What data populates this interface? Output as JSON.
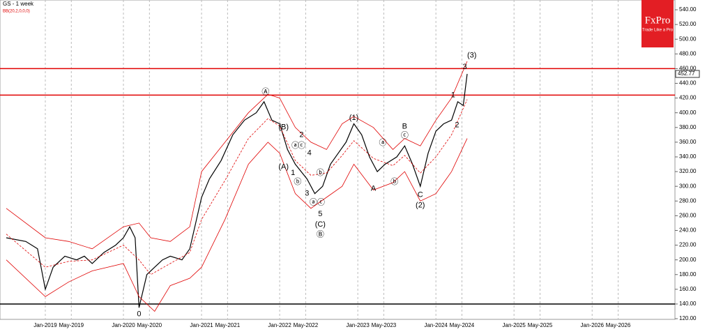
{
  "chart_data": {
    "type": "line",
    "title": "GS - 1 week",
    "subtitle": "BB(20,2,0,0,0)",
    "logo": {
      "name": "FxPro",
      "tagline": "Trade Like a Pro"
    },
    "xlim": [
      2018.42,
      2027.06
    ],
    "ylim": [
      119.1,
      553.3
    ],
    "xticks": [
      {
        "value": 2019.0,
        "label": "Jan-2019"
      },
      {
        "value": 2019.333,
        "label": "May-2019"
      },
      {
        "value": 2020.0,
        "label": "Jan-2020"
      },
      {
        "value": 2020.333,
        "label": "May-2020"
      },
      {
        "value": 2021.0,
        "label": "Jan-2021"
      },
      {
        "value": 2021.333,
        "label": "May-2021"
      },
      {
        "value": 2022.0,
        "label": "Jan-2022"
      },
      {
        "value": 2022.333,
        "label": "May-2022"
      },
      {
        "value": 2023.0,
        "label": "Jan-2023"
      },
      {
        "value": 2023.333,
        "label": "May-2023"
      },
      {
        "value": 2024.0,
        "label": "Jan-2024"
      },
      {
        "value": 2024.333,
        "label": "May-2024"
      },
      {
        "value": 2025.0,
        "label": "Jan-2025"
      },
      {
        "value": 2025.333,
        "label": "May-2025"
      },
      {
        "value": 2026.0,
        "label": "Jan-2026"
      },
      {
        "value": 2026.333,
        "label": "May-2026"
      }
    ],
    "yticks": [
      {
        "value": 120,
        "label": "120.00"
      },
      {
        "value": 140,
        "label": "140.00"
      },
      {
        "value": 160,
        "label": "160.00"
      },
      {
        "value": 180,
        "label": "180.00"
      },
      {
        "value": 200,
        "label": "200.00"
      },
      {
        "value": 220,
        "label": "220.00"
      },
      {
        "value": 240,
        "label": "240.00"
      },
      {
        "value": 260,
        "label": "260.00"
      },
      {
        "value": 280,
        "label": "280.00"
      },
      {
        "value": 300,
        "label": "300.00"
      },
      {
        "value": 320,
        "label": "320.00"
      },
      {
        "value": 340,
        "label": "340.00"
      },
      {
        "value": 360,
        "label": "360.00"
      },
      {
        "value": 380,
        "label": "380.00"
      },
      {
        "value": 400,
        "label": "400.00"
      },
      {
        "value": 420,
        "label": "420.00"
      },
      {
        "value": 440,
        "label": "440.00"
      },
      {
        "value": 460,
        "label": "460.00"
      },
      {
        "value": 480,
        "label": "480.00"
      },
      {
        "value": 500,
        "label": "500.00"
      },
      {
        "value": 520,
        "label": "520.00"
      },
      {
        "value": 540,
        "label": "540.00"
      }
    ],
    "grid": true,
    "series": [
      {
        "name": "GS",
        "color": "#000000",
        "x": [
          2018.5,
          2018.75,
          2018.9,
          2019.0,
          2019.1,
          2019.25,
          2019.4,
          2019.5,
          2019.6,
          2019.75,
          2019.9,
          2020.0,
          2020.08,
          2020.15,
          2020.2,
          2020.3,
          2020.4,
          2020.5,
          2020.6,
          2020.75,
          2020.85,
          2021.0,
          2021.1,
          2021.25,
          2021.4,
          2021.55,
          2021.7,
          2021.8,
          2021.9,
          2022.0,
          2022.1,
          2022.2,
          2022.35,
          2022.45,
          2022.55,
          2022.65,
          2022.75,
          2022.85,
          2022.95,
          2023.05,
          2023.15,
          2023.25,
          2023.35,
          2023.5,
          2023.6,
          2023.7,
          2023.8,
          2023.9,
          2024.0,
          2024.1,
          2024.2,
          2024.28,
          2024.35,
          2024.4
        ],
        "values": [
          230,
          225,
          215,
          160,
          190,
          205,
          200,
          205,
          195,
          210,
          220,
          230,
          245,
          230,
          135,
          180,
          190,
          200,
          205,
          200,
          215,
          285,
          310,
          335,
          370,
          390,
          400,
          415,
          390,
          385,
          350,
          330,
          310,
          290,
          300,
          330,
          345,
          360,
          385,
          370,
          340,
          320,
          330,
          340,
          355,
          330,
          300,
          345,
          375,
          385,
          390,
          415,
          410,
          452.77
        ]
      },
      {
        "name": "BB upper",
        "color": "#e00000",
        "x": [
          2018.5,
          2019.0,
          2019.3,
          2019.6,
          2020.0,
          2020.2,
          2020.35,
          2020.6,
          2020.85,
          2021.0,
          2021.3,
          2021.6,
          2021.85,
          2022.0,
          2022.2,
          2022.4,
          2022.6,
          2022.8,
          2022.95,
          2023.2,
          2023.45,
          2023.6,
          2023.8,
          2024.0,
          2024.2,
          2024.4
        ],
        "values": [
          270,
          230,
          225,
          215,
          245,
          250,
          230,
          225,
          245,
          320,
          360,
          400,
          425,
          420,
          380,
          360,
          350,
          385,
          395,
          380,
          350,
          365,
          355,
          390,
          420,
          470
        ]
      },
      {
        "name": "BB middle",
        "color": "#e00000",
        "dashed": true,
        "x": [
          2018.5,
          2019.0,
          2019.3,
          2019.6,
          2020.0,
          2020.2,
          2020.35,
          2020.6,
          2020.85,
          2021.0,
          2021.3,
          2021.6,
          2021.85,
          2022.0,
          2022.2,
          2022.4,
          2022.6,
          2022.8,
          2022.95,
          2023.2,
          2023.45,
          2023.6,
          2023.8,
          2024.0,
          2024.2,
          2024.4
        ],
        "values": [
          235,
          190,
          198,
          200,
          220,
          200,
          180,
          195,
          210,
          255,
          308,
          365,
          392,
          382,
          335,
          315,
          318,
          342,
          362,
          338,
          328,
          342,
          318,
          340,
          370,
          418
        ]
      },
      {
        "name": "BB lower",
        "color": "#e00000",
        "x": [
          2018.5,
          2019.0,
          2019.3,
          2019.6,
          2020.0,
          2020.2,
          2020.4,
          2020.6,
          2020.85,
          2021.0,
          2021.3,
          2021.6,
          2021.85,
          2022.0,
          2022.2,
          2022.4,
          2022.6,
          2022.8,
          2022.95,
          2023.2,
          2023.45,
          2023.6,
          2023.8,
          2024.0,
          2024.2,
          2024.4
        ],
        "values": [
          200,
          150,
          170,
          185,
          195,
          150,
          130,
          165,
          175,
          190,
          255,
          330,
          360,
          345,
          290,
          270,
          285,
          300,
          330,
          295,
          305,
          320,
          280,
          290,
          320,
          365
        ]
      }
    ],
    "levels": [
      {
        "value": 460,
        "color": "#e00000"
      },
      {
        "value": 424,
        "color": "#e00000"
      },
      {
        "value": 140,
        "color": "#000000"
      }
    ],
    "last_price": 452.77,
    "annotations": [
      {
        "label": "Ⓐ",
        "x": 2021.82,
        "y": 428
      },
      {
        "label": "(B)",
        "x": 2022.05,
        "y": 380
      },
      {
        "label": "2",
        "x": 2022.28,
        "y": 370
      },
      {
        "label": "ⓐ",
        "x": 2022.2,
        "y": 355
      },
      {
        "label": "ⓒ",
        "x": 2022.28,
        "y": 355
      },
      {
        "label": "(A)",
        "x": 2022.05,
        "y": 326
      },
      {
        "label": "1",
        "x": 2022.17,
        "y": 318
      },
      {
        "label": "4",
        "x": 2022.38,
        "y": 345
      },
      {
        "label": "ⓑ",
        "x": 2022.23,
        "y": 306
      },
      {
        "label": "ⓑ",
        "x": 2022.52,
        "y": 318
      },
      {
        "label": "3",
        "x": 2022.35,
        "y": 290
      },
      {
        "label": "ⓐⓒ",
        "x": 2022.48,
        "y": 278
      },
      {
        "label": "5",
        "x": 2022.52,
        "y": 262
      },
      {
        "label": "(C)",
        "x": 2022.52,
        "y": 248
      },
      {
        "label": "Ⓑ",
        "x": 2022.52,
        "y": 234
      },
      {
        "label": "(1)",
        "x": 2022.95,
        "y": 393
      },
      {
        "label": "ⓐ",
        "x": 2023.32,
        "y": 359
      },
      {
        "label": "A",
        "x": 2023.2,
        "y": 297
      },
      {
        "label": "ⓑ",
        "x": 2023.47,
        "y": 306
      },
      {
        "label": "B",
        "x": 2023.6,
        "y": 381
      },
      {
        "label": "ⓒ",
        "x": 2023.6,
        "y": 369
      },
      {
        "label": "C",
        "x": 2023.8,
        "y": 288
      },
      {
        "label": "(2)",
        "x": 2023.8,
        "y": 274
      },
      {
        "label": "1",
        "x": 2024.22,
        "y": 424
      },
      {
        "label": "2",
        "x": 2024.27,
        "y": 383
      },
      {
        "label": "3",
        "x": 2024.37,
        "y": 462
      },
      {
        "label": "(3)",
        "x": 2024.46,
        "y": 478
      },
      {
        "label": "0",
        "x": 2020.2,
        "y": 126
      }
    ]
  }
}
